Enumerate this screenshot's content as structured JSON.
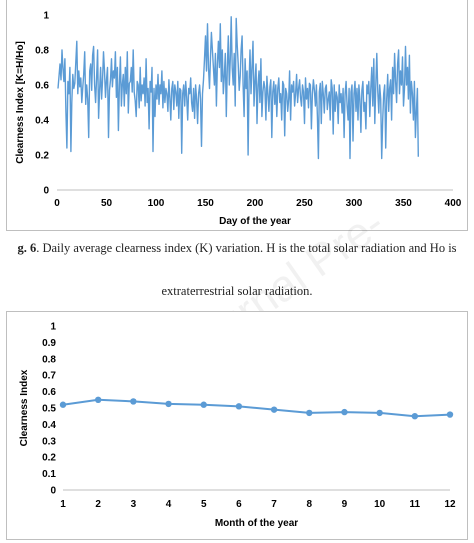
{
  "figure1": {
    "caption_label": "g. 6",
    "caption_line1": ". Daily average clearness index (K) variation. H is the total solar radiation and Ho is",
    "caption_line2": "extraterrestrial solar radiation."
  },
  "chart_data": [
    {
      "type": "line",
      "xlabel": "Day of the year",
      "ylabel": "Clearness Index [K=H/Ho]",
      "xlim": [
        0,
        400
      ],
      "ylim": [
        0,
        1
      ],
      "xticks": [
        "0",
        "50",
        "100",
        "150",
        "200",
        "250",
        "300",
        "350",
        "400"
      ],
      "yticks": [
        "0",
        "0.2",
        "0.4",
        "0.6",
        "0.8",
        "1"
      ],
      "grid": false,
      "legend": "none",
      "color": "#5b9bd5",
      "series": [
        {
          "x": [
            1,
            2,
            3,
            4,
            5,
            6,
            7,
            8,
            9,
            10,
            11,
            12,
            13,
            14,
            15,
            16,
            17,
            18,
            19,
            20,
            21,
            22,
            23,
            24,
            25,
            26,
            27,
            28,
            29,
            30,
            31,
            32,
            33,
            34,
            35,
            36,
            37,
            38,
            39,
            40,
            41,
            42,
            43,
            44,
            45,
            46,
            47,
            48,
            49,
            50,
            51,
            52,
            53,
            54,
            55,
            56,
            57,
            58,
            59,
            60,
            61,
            62,
            63,
            64,
            65,
            66,
            67,
            68,
            69,
            70,
            71,
            72,
            73,
            74,
            75,
            76,
            77,
            78,
            79,
            80,
            81,
            82,
            83,
            84,
            85,
            86,
            87,
            88,
            89,
            90,
            91,
            92,
            93,
            94,
            95,
            96,
            97,
            98,
            99,
            100,
            101,
            102,
            103,
            104,
            105,
            106,
            107,
            108,
            109,
            110,
            111,
            112,
            113,
            114,
            115,
            116,
            117,
            118,
            119,
            120,
            121,
            122,
            123,
            124,
            125,
            126,
            127,
            128,
            129,
            130,
            131,
            132,
            133,
            134,
            135,
            136,
            137,
            138,
            139,
            140,
            141,
            142,
            143,
            144,
            145,
            146,
            147,
            148,
            149,
            150,
            151,
            152,
            153,
            154,
            155,
            156,
            157,
            158,
            159,
            160,
            161,
            162,
            163,
            164,
            165,
            166,
            167,
            168,
            169,
            170,
            171,
            172,
            173,
            174,
            175,
            176,
            177,
            178,
            179,
            180,
            181,
            182,
            183,
            184,
            185,
            186,
            187,
            188,
            189,
            190,
            191,
            192,
            193,
            194,
            195,
            196,
            197,
            198,
            199,
            200,
            201,
            202,
            203,
            204,
            205,
            206,
            207,
            208,
            209,
            210,
            211,
            212,
            213,
            214,
            215,
            216,
            217,
            218,
            219,
            220,
            221,
            222,
            223,
            224,
            225,
            226,
            227,
            228,
            229,
            230,
            231,
            232,
            233,
            234,
            235,
            236,
            237,
            238,
            239,
            240,
            241,
            242,
            243,
            244,
            245,
            246,
            247,
            248,
            249,
            250,
            251,
            252,
            253,
            254,
            255,
            256,
            257,
            258,
            259,
            260,
            261,
            262,
            263,
            264,
            265,
            266,
            267,
            268,
            269,
            270,
            271,
            272,
            273,
            274,
            275,
            276,
            277,
            278,
            279,
            280,
            281,
            282,
            283,
            284,
            285,
            286,
            287,
            288,
            289,
            290,
            291,
            292,
            293,
            294,
            295,
            296,
            297,
            298,
            299,
            300,
            301,
            302,
            303,
            304,
            305,
            306,
            307,
            308,
            309,
            310,
            311,
            312,
            313,
            314,
            315,
            316,
            317,
            318,
            319,
            320,
            321,
            322,
            323,
            324,
            325,
            326,
            327,
            328,
            329,
            330,
            331,
            332,
            333,
            334,
            335,
            336,
            337,
            338,
            339,
            340,
            341,
            342,
            343,
            344,
            345,
            346,
            347,
            348,
            349,
            350,
            351,
            352,
            353,
            354,
            355,
            356,
            357,
            358,
            359,
            360,
            361,
            362,
            363,
            364,
            365
          ],
          "y": [
            0.58,
            0.65,
            0.72,
            0.63,
            0.8,
            0.7,
            0.62,
            0.75,
            0.45,
            0.24,
            0.62,
            0.55,
            0.7,
            0.22,
            0.5,
            0.66,
            0.58,
            0.61,
            0.73,
            0.85,
            0.55,
            0.68,
            0.59,
            0.64,
            0.5,
            0.58,
            0.66,
            0.79,
            0.49,
            0.6,
            0.52,
            0.3,
            0.68,
            0.72,
            0.57,
            0.77,
            0.82,
            0.6,
            0.5,
            0.64,
            0.8,
            0.41,
            0.57,
            0.7,
            0.52,
            0.62,
            0.79,
            0.68,
            0.53,
            0.63,
            0.7,
            0.3,
            0.57,
            0.63,
            0.75,
            0.59,
            0.68,
            0.64,
            0.79,
            0.53,
            0.7,
            0.34,
            0.6,
            0.76,
            0.48,
            0.6,
            0.66,
            0.48,
            0.7,
            0.55,
            0.79,
            0.44,
            0.61,
            0.62,
            0.7,
            0.56,
            0.8,
            0.56,
            0.51,
            0.42,
            0.62,
            0.6,
            0.47,
            0.7,
            0.51,
            0.6,
            0.55,
            0.64,
            0.48,
            0.75,
            0.5,
            0.58,
            0.35,
            0.62,
            0.56,
            0.7,
            0.22,
            0.58,
            0.42,
            0.6,
            0.52,
            0.66,
            0.49,
            0.6,
            0.55,
            0.68,
            0.47,
            0.62,
            0.5,
            0.58,
            0.55,
            0.45,
            0.63,
            0.52,
            0.4,
            0.58,
            0.62,
            0.46,
            0.6,
            0.56,
            0.48,
            0.62,
            0.41,
            0.58,
            0.57,
            0.21,
            0.55,
            0.6,
            0.48,
            0.62,
            0.53,
            0.4,
            0.58,
            0.55,
            0.64,
            0.5,
            0.45,
            0.58,
            0.41,
            0.6,
            0.52,
            0.38,
            0.55,
            0.6,
            0.52,
            0.25,
            0.55,
            0.63,
            0.75,
            0.88,
            0.68,
            0.95,
            0.7,
            0.58,
            0.76,
            0.9,
            0.8,
            0.7,
            0.6,
            0.78,
            0.48,
            0.72,
            0.85,
            0.7,
            0.95,
            0.62,
            0.8,
            0.55,
            0.65,
            0.78,
            0.42,
            0.7,
            0.88,
            0.6,
            0.75,
            0.99,
            0.7,
            0.6,
            0.78,
            0.48,
            0.98,
            0.83,
            0.72,
            0.57,
            0.65,
            0.8,
            0.88,
            0.6,
            0.42,
            0.75,
            0.58,
            0.68,
            0.2,
            0.62,
            0.8,
            0.55,
            0.7,
            0.85,
            0.48,
            0.62,
            0.72,
            0.38,
            0.6,
            0.68,
            0.5,
            0.75,
            0.42,
            0.56,
            0.62,
            0.58,
            0.4,
            0.65,
            0.55,
            0.45,
            0.59,
            0.63,
            0.3,
            0.56,
            0.62,
            0.49,
            0.6,
            0.42,
            0.58,
            0.64,
            0.5,
            0.55,
            0.4,
            0.62,
            0.6,
            0.31,
            0.58,
            0.55,
            0.45,
            0.52,
            0.68,
            0.4,
            0.6,
            0.56,
            0.62,
            0.48,
            0.55,
            0.66,
            0.5,
            0.58,
            0.63,
            0.53,
            0.48,
            0.6,
            0.56,
            0.38,
            0.64,
            0.52,
            0.58,
            0.47,
            0.61,
            0.6,
            0.35,
            0.55,
            0.63,
            0.57,
            0.48,
            0.6,
            0.42,
            0.18,
            0.56,
            0.61,
            0.38,
            0.62,
            0.55,
            0.44,
            0.58,
            0.6,
            0.46,
            0.52,
            0.56,
            0.4,
            0.63,
            0.58,
            0.32,
            0.6,
            0.45,
            0.56,
            0.53,
            0.38,
            0.6,
            0.5,
            0.55,
            0.44,
            0.58,
            0.3,
            0.55,
            0.62,
            0.48,
            0.4,
            0.58,
            0.18,
            0.56,
            0.6,
            0.28,
            0.55,
            0.62,
            0.45,
            0.58,
            0.4,
            0.6,
            0.52,
            0.33,
            0.57,
            0.62,
            0.45,
            0.5,
            0.35,
            0.6,
            0.55,
            0.62,
            0.42,
            0.58,
            0.7,
            0.48,
            0.75,
            0.38,
            0.6,
            0.78,
            0.56,
            0.44,
            0.6,
            0.52,
            0.18,
            0.4,
            0.55,
            0.6,
            0.24,
            0.52,
            0.66,
            0.45,
            0.58,
            0.63,
            0.4,
            0.7,
            0.55,
            0.78,
            0.62,
            0.5,
            0.72,
            0.8,
            0.55,
            0.68,
            0.6,
            0.76,
            0.48,
            0.58,
            0.82,
            0.6,
            0.7,
            0.52,
            0.77,
            0.44,
            0.62,
            0.55,
            0.4,
            0.62,
            0.3,
            0.45,
            0.58,
            0.19
          ]
        }
      ]
    },
    {
      "type": "line",
      "xlabel": "Month of the year",
      "ylabel": "Clearness Index",
      "ylim": [
        0,
        1
      ],
      "categories": [
        "1",
        "2",
        "3",
        "4",
        "5",
        "6",
        "7",
        "8",
        "9",
        "10",
        "11",
        "12"
      ],
      "yticks": [
        "0",
        "0.1",
        "0.2",
        "0.3",
        "0.4",
        "0.5",
        "0.6",
        "0.7",
        "0.8",
        "0.9",
        "1"
      ],
      "grid": false,
      "legend": "none",
      "color": "#5b9bd5",
      "series": [
        {
          "values": [
            0.52,
            0.55,
            0.54,
            0.525,
            0.52,
            0.51,
            0.49,
            0.47,
            0.475,
            0.47,
            0.45,
            0.46
          ]
        }
      ]
    }
  ]
}
